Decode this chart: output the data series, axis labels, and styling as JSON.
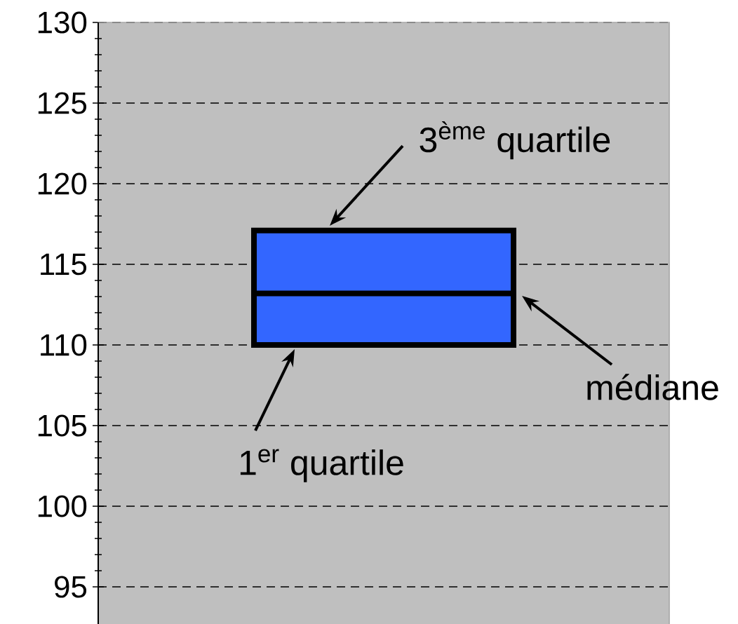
{
  "chart_data": {
    "type": "box",
    "categories": [
      null
    ],
    "boxes": [
      {
        "low": 110,
        "q1": 110,
        "median": 113.2,
        "q3": 117.1,
        "high": 117.1
      }
    ],
    "color": "#3366ff",
    "ylim": [
      92.5,
      130
    ],
    "yticks": [
      95,
      100,
      105,
      110,
      115,
      120,
      125,
      130
    ],
    "grid": "y",
    "annotations": [
      "3$^{ème}$ quartile",
      "médiane",
      "1$^{er}$ quartile"
    ]
  }
}
